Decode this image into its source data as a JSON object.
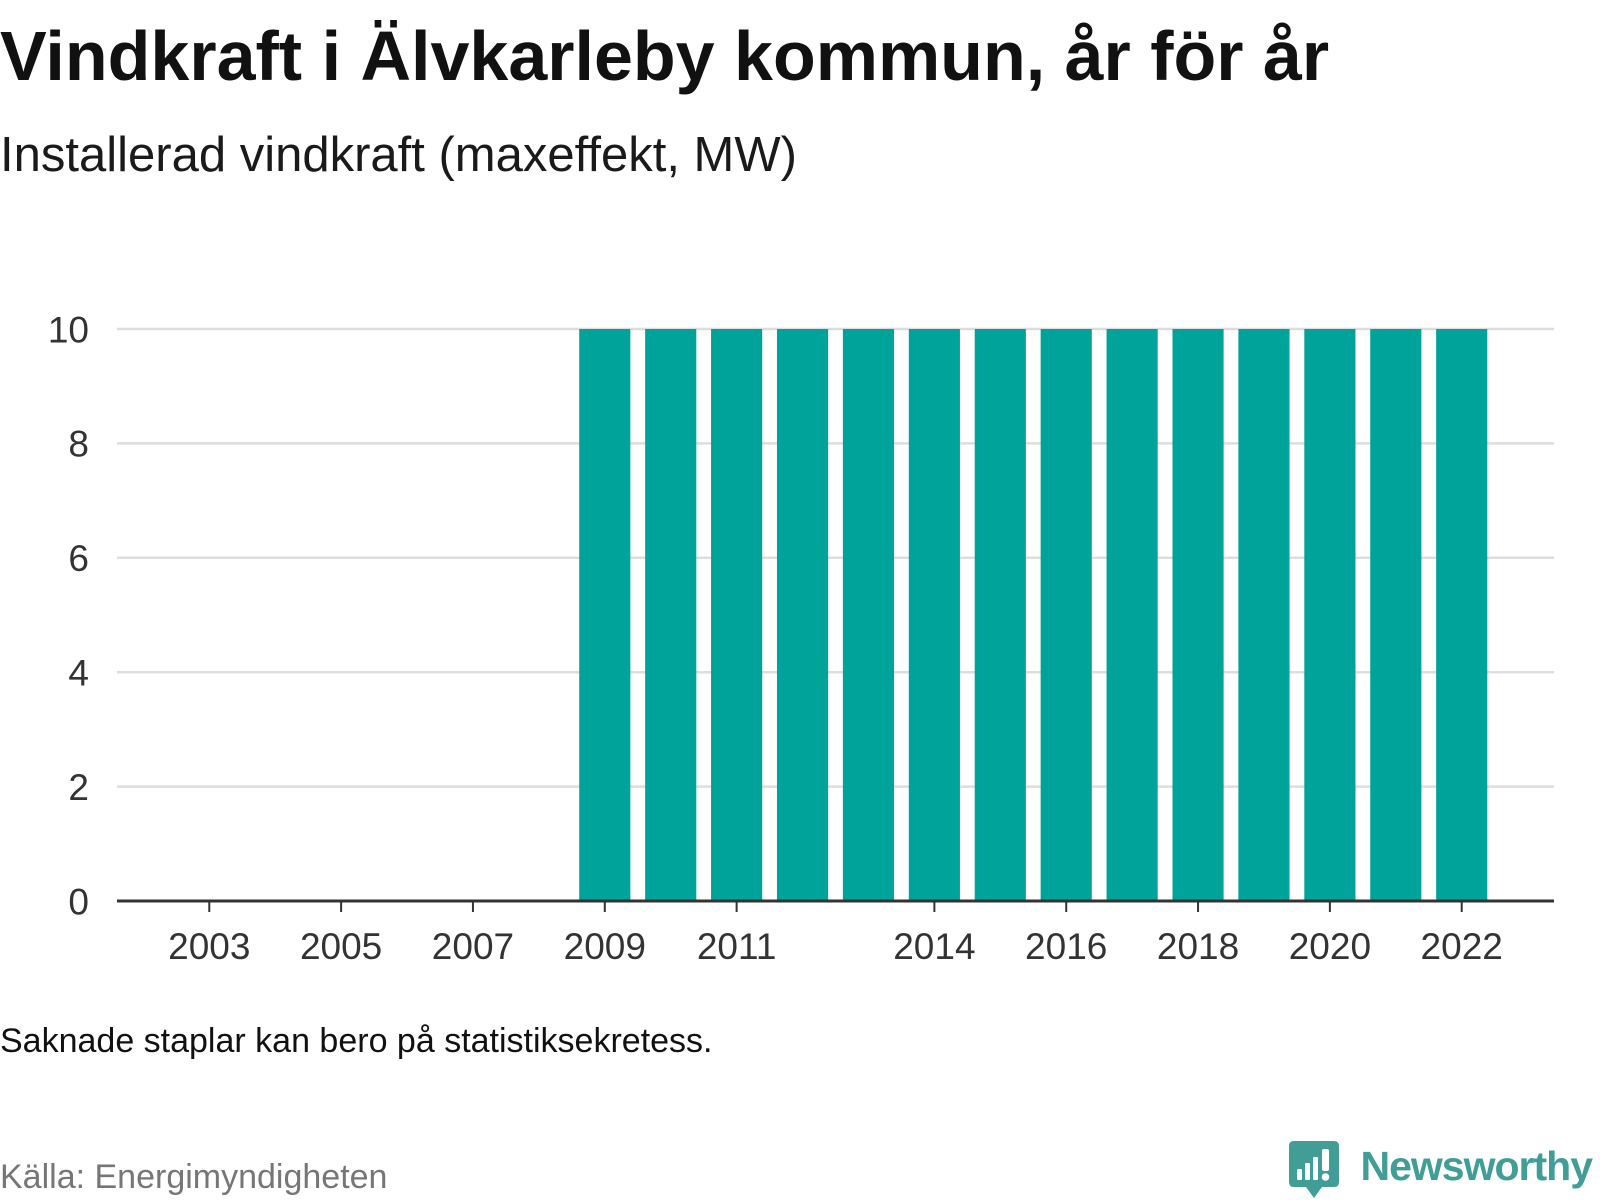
{
  "chart_data": {
    "type": "bar",
    "title": "Vindkraft i Älvkarleby kommun, år för år",
    "subtitle": "Installerad vindkraft (maxeffekt, MW)",
    "x": [
      2009,
      2010,
      2011,
      2012,
      2013,
      2014,
      2015,
      2016,
      2017,
      2018,
      2019,
      2020,
      2021,
      2022
    ],
    "values": [
      10,
      10,
      10,
      10,
      10,
      10,
      10,
      10,
      10,
      10,
      10,
      10,
      10,
      10
    ],
    "xticks": [
      2003,
      2005,
      2007,
      2009,
      2011,
      2014,
      2016,
      2018,
      2020,
      2022
    ],
    "yticks": [
      0,
      2,
      4,
      6,
      8,
      10
    ],
    "xlim": [
      2001.6,
      2023.4
    ],
    "ylim": [
      0,
      10
    ],
    "grid": true,
    "legend": "none",
    "bar_color": "#00a39a"
  },
  "note": "Saknade staplar kan bero på statistiksekretess.",
  "source": "Källa: Energimyndigheten",
  "logo": {
    "text": "Newsworthy",
    "icon": "newsworthy-chart-bubble-icon"
  },
  "colors": {
    "brand": "#419e97",
    "bar": "#00a39a",
    "grid": "#dddddd",
    "axis": "#333333"
  }
}
